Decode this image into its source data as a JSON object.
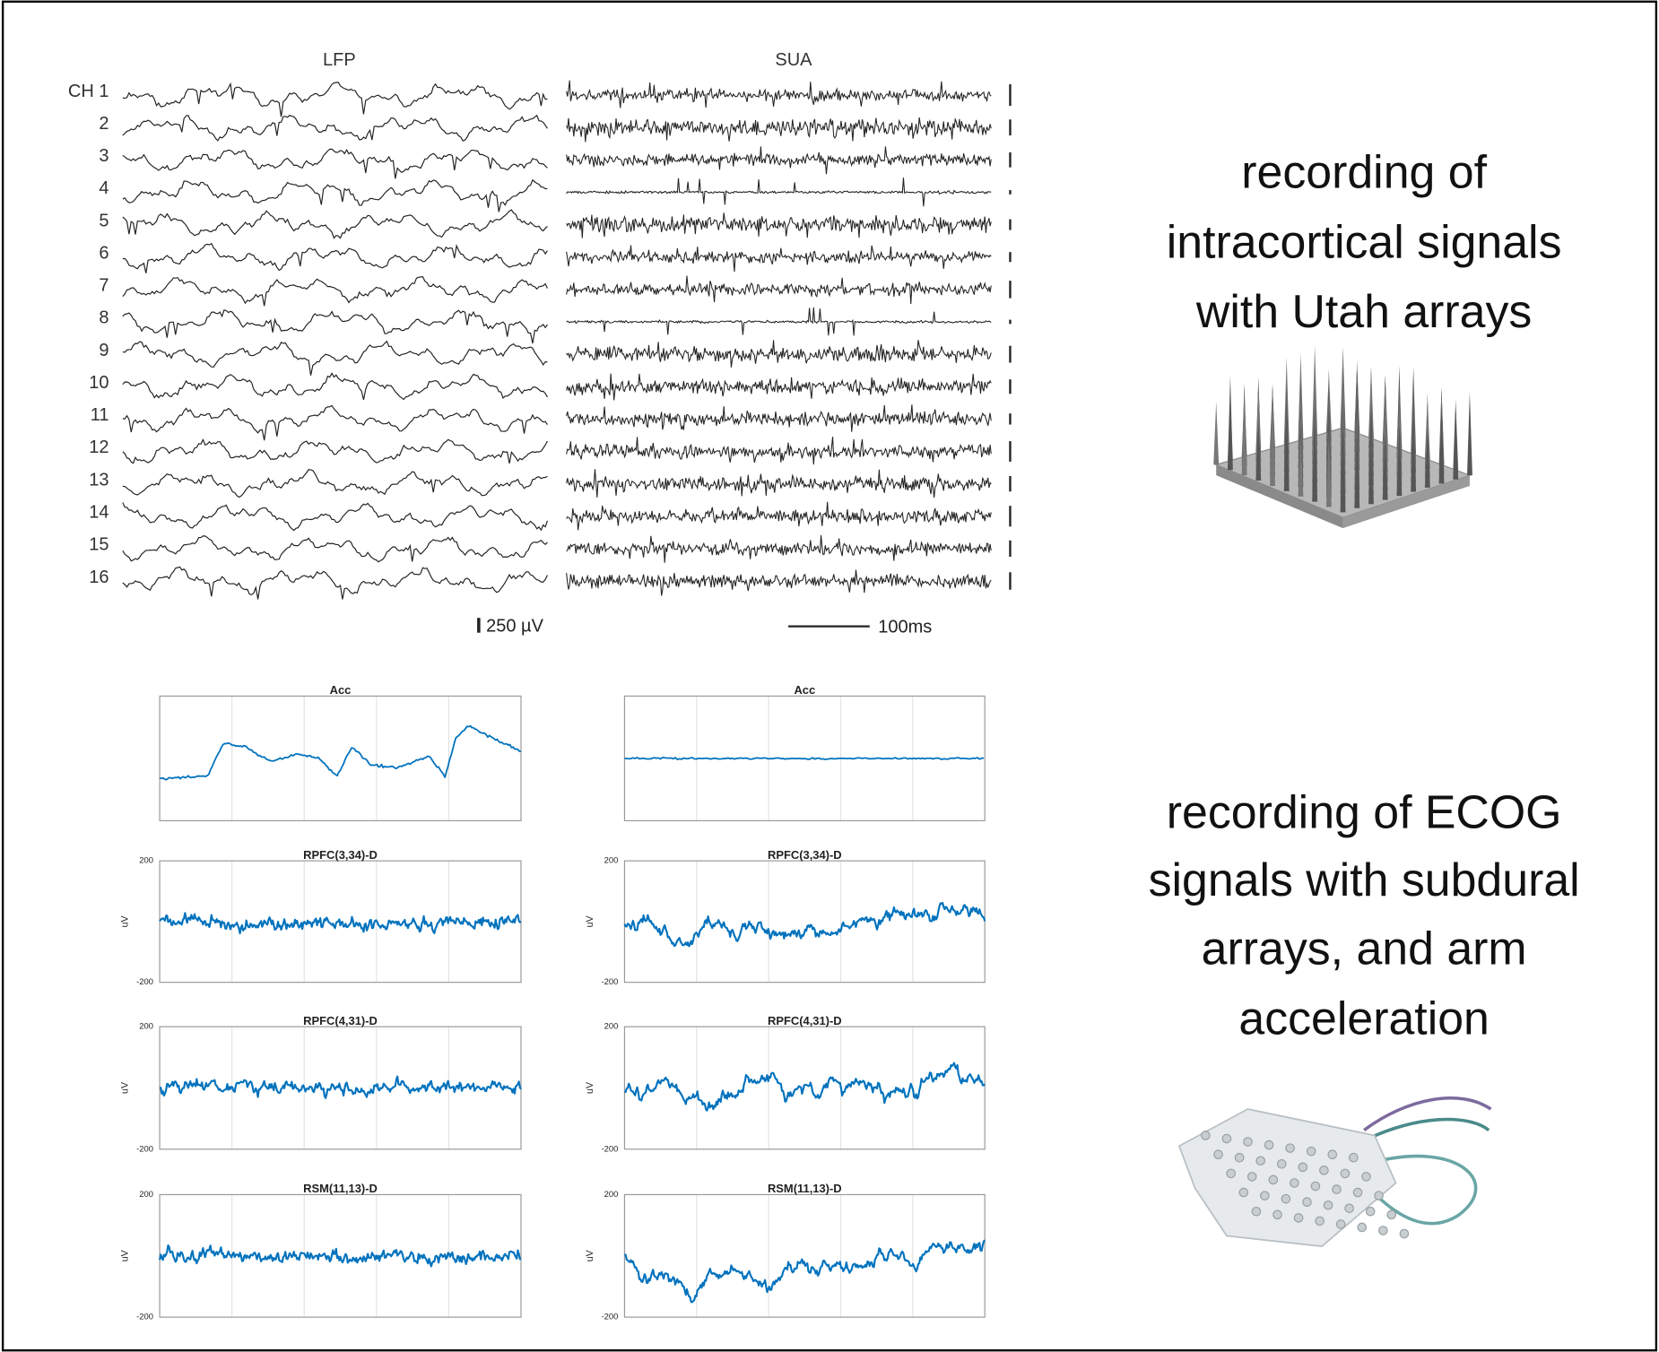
{
  "lfp_panel": {
    "title": "LFP",
    "channels": [
      "CH 1",
      "2",
      "3",
      "4",
      "5",
      "6",
      "7",
      "8",
      "9",
      "10",
      "11",
      "12",
      "13",
      "14",
      "15",
      "16"
    ],
    "scale_label": "250 µV"
  },
  "sua_panel": {
    "title": "SUA",
    "scale_label": "100ms"
  },
  "ecog_columns": [
    {
      "plots": [
        {
          "title": "Acc"
        },
        {
          "title": "RPFC(3,34)-D",
          "ytick_top": "200",
          "ytick_bottom": "-200",
          "ylabel": "uV"
        },
        {
          "title": "RPFC(4,31)-D",
          "ytick_top": "200",
          "ytick_bottom": "-200",
          "ylabel": "uV"
        },
        {
          "title": "RSM(11,13)-D",
          "ytick_top": "200",
          "ytick_bottom": "-200",
          "ylabel": "uV"
        }
      ]
    },
    {
      "plots": [
        {
          "title": "Acc"
        },
        {
          "title": "RPFC(3,34)-D",
          "ytick_top": "200",
          "ytick_bottom": "-200",
          "ylabel": "uV"
        },
        {
          "title": "RPFC(4,31)-D",
          "ytick_top": "200",
          "ytick_bottom": "-200",
          "ylabel": "uV"
        },
        {
          "title": "RSM(11,13)-D",
          "ytick_top": "200",
          "ytick_bottom": "-200",
          "ylabel": "uV"
        }
      ]
    }
  ],
  "captions": [
    {
      "lines": [
        "recording of",
        "intracortical signals",
        "with Utah arrays"
      ]
    },
    {
      "lines": [
        "recording of ECOG",
        "signals with subdural",
        "arrays, and arm",
        "acceleration"
      ]
    }
  ]
}
